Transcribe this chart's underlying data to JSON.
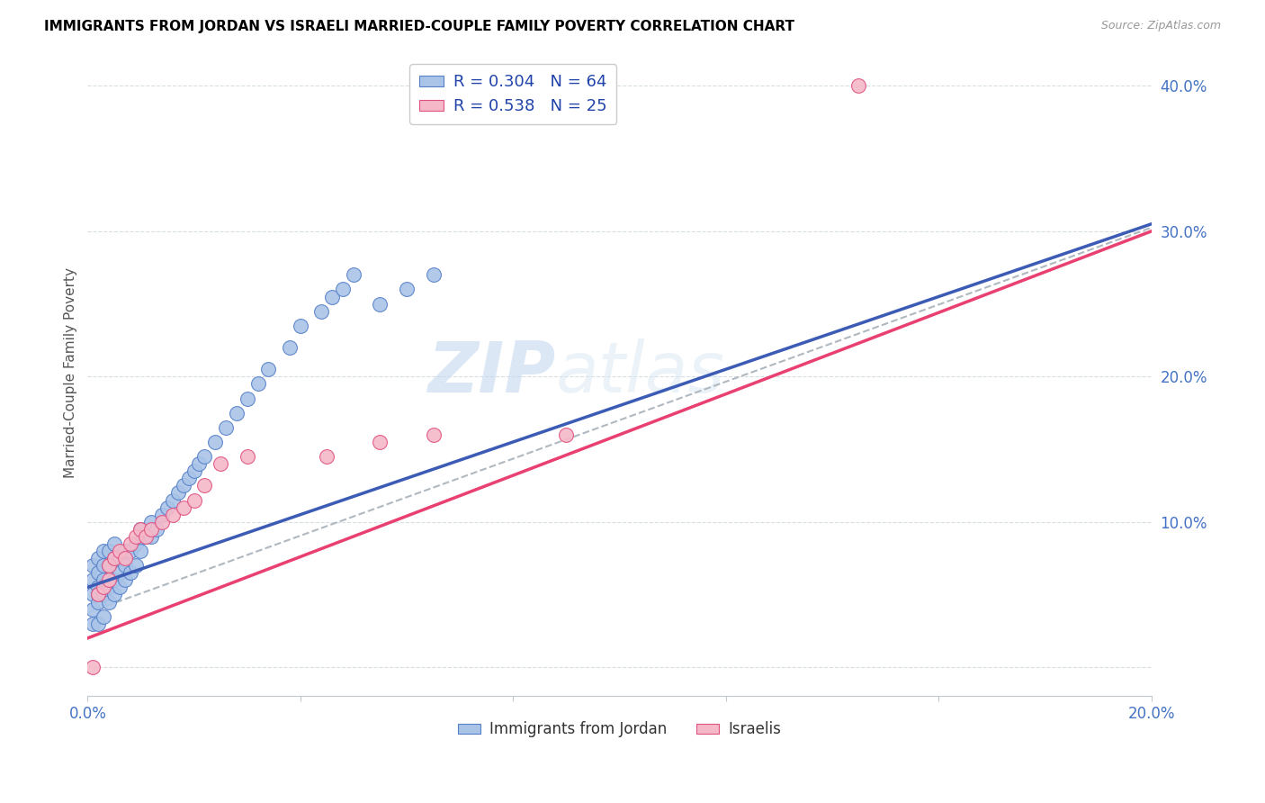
{
  "title": "IMMIGRANTS FROM JORDAN VS ISRAELI MARRIED-COUPLE FAMILY POVERTY CORRELATION CHART",
  "source": "Source: ZipAtlas.com",
  "ylabel": "Married-Couple Family Poverty",
  "xlim": [
    0.0,
    0.2
  ],
  "ylim": [
    -0.02,
    0.425
  ],
  "legend_label1": "R = 0.304   N = 64",
  "legend_label2": "R = 0.538   N = 25",
  "legend_bottom1": "Immigrants from Jordan",
  "legend_bottom2": "Israelis",
  "color_jordan_fill": "#aac4e8",
  "color_jordan_edge": "#5580c8",
  "color_israeli_fill": "#f5b8c8",
  "color_israeli_edge": "#e05080",
  "color_line_jordan": "#3b5bb5",
  "color_line_israeli": "#e84070",
  "color_trendline_dashed": "#b0b8c0",
  "watermark_zip": "ZIP",
  "watermark_atlas": "atlas",
  "jordan_x": [
    0.001,
    0.001,
    0.001,
    0.001,
    0.001,
    0.002,
    0.002,
    0.002,
    0.002,
    0.002,
    0.002,
    0.003,
    0.003,
    0.003,
    0.003,
    0.003,
    0.004,
    0.004,
    0.004,
    0.004,
    0.005,
    0.005,
    0.005,
    0.005,
    0.006,
    0.006,
    0.006,
    0.007,
    0.007,
    0.007,
    0.008,
    0.008,
    0.009,
    0.009,
    0.01,
    0.01,
    0.011,
    0.012,
    0.012,
    0.013,
    0.014,
    0.015,
    0.016,
    0.017,
    0.018,
    0.019,
    0.02,
    0.021,
    0.022,
    0.024,
    0.026,
    0.028,
    0.03,
    0.032,
    0.034,
    0.038,
    0.04,
    0.044,
    0.046,
    0.048,
    0.05,
    0.055,
    0.06,
    0.065
  ],
  "jordan_y": [
    0.03,
    0.04,
    0.05,
    0.06,
    0.07,
    0.03,
    0.045,
    0.055,
    0.065,
    0.075,
    0.05,
    0.035,
    0.05,
    0.06,
    0.07,
    0.08,
    0.045,
    0.055,
    0.07,
    0.08,
    0.05,
    0.06,
    0.075,
    0.085,
    0.055,
    0.065,
    0.075,
    0.06,
    0.07,
    0.08,
    0.065,
    0.08,
    0.07,
    0.085,
    0.08,
    0.095,
    0.09,
    0.09,
    0.1,
    0.095,
    0.105,
    0.11,
    0.115,
    0.12,
    0.125,
    0.13,
    0.135,
    0.14,
    0.145,
    0.155,
    0.165,
    0.175,
    0.185,
    0.195,
    0.205,
    0.22,
    0.235,
    0.245,
    0.255,
    0.26,
    0.27,
    0.25,
    0.26,
    0.27
  ],
  "israeli_x": [
    0.001,
    0.002,
    0.003,
    0.004,
    0.004,
    0.005,
    0.006,
    0.007,
    0.008,
    0.009,
    0.01,
    0.011,
    0.012,
    0.014,
    0.016,
    0.018,
    0.02,
    0.022,
    0.025,
    0.03,
    0.045,
    0.055,
    0.065,
    0.09,
    0.145
  ],
  "israeli_y": [
    0.0,
    0.05,
    0.055,
    0.06,
    0.07,
    0.075,
    0.08,
    0.075,
    0.085,
    0.09,
    0.095,
    0.09,
    0.095,
    0.1,
    0.105,
    0.11,
    0.115,
    0.125,
    0.14,
    0.145,
    0.145,
    0.155,
    0.16,
    0.16,
    0.4
  ],
  "jordan_line_x0": 0.0,
  "jordan_line_y0": 0.055,
  "jordan_line_x1": 0.2,
  "jordan_line_y1": 0.305,
  "israeli_line_x0": 0.0,
  "israeli_line_y0": 0.02,
  "israeli_line_x1": 0.2,
  "israeli_line_y1": 0.3
}
